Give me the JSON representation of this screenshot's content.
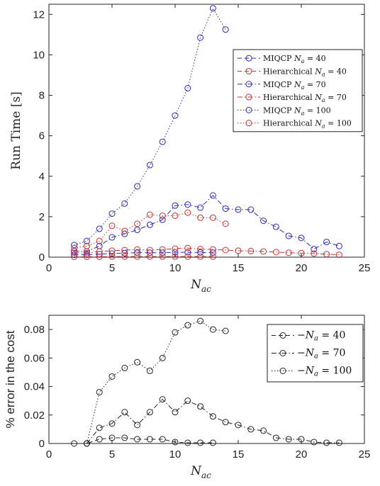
{
  "chart_data": [
    {
      "type": "line",
      "xlabel": "N_ac",
      "ylabel": "Run Time [s]",
      "xlim": [
        0,
        25
      ],
      "ylim": [
        0,
        12.5
      ],
      "xticks": [
        "0",
        "5",
        "10",
        "15",
        "20",
        "25"
      ],
      "yticks": [
        "0",
        "2",
        "4",
        "6",
        "8",
        "10",
        "12"
      ],
      "grid": false,
      "legend_position": "top-right",
      "series": [
        {
          "name": "MIQCP N_a = 40",
          "label_main": "MIQCP ",
          "label_var": "N",
          "label_sub": "a",
          "label_rest": " = 40",
          "color": "#2b2bb8",
          "dash": "dashed",
          "x": [
            2,
            3,
            4,
            5,
            6,
            7,
            8,
            9,
            10,
            11,
            12,
            13
          ],
          "y": [
            0.12,
            0.12,
            0.15,
            0.18,
            0.2,
            0.22,
            0.22,
            0.22,
            0.24,
            0.24,
            0.23,
            0.22
          ]
        },
        {
          "name": "Hierarchical N_a = 40",
          "label_main": "Hierarchical ",
          "label_var": "N",
          "label_sub": "a",
          "label_rest": " = 40",
          "color": "#c83232",
          "dash": "dashed",
          "x": [
            2,
            3,
            4,
            5,
            6,
            7,
            8,
            9,
            10,
            11,
            12,
            13
          ],
          "y": [
            0.02,
            0.02,
            0.02,
            0.03,
            0.03,
            0.03,
            0.03,
            0.03,
            0.03,
            0.03,
            0.03,
            0.03
          ]
        },
        {
          "name": "MIQCP N_a = 70",
          "label_main": "MIQCP ",
          "label_var": "N",
          "label_sub": "a",
          "label_rest": " = 70",
          "color": "#2b2bb8",
          "dash": "dashdot",
          "x": [
            2,
            3,
            4,
            5,
            6,
            7,
            8,
            9,
            10,
            11,
            12,
            13,
            14,
            15,
            16,
            17,
            18,
            19,
            20,
            21,
            22,
            23
          ],
          "y": [
            0.3,
            0.28,
            0.55,
            0.98,
            1.15,
            1.35,
            1.6,
            1.85,
            2.55,
            2.6,
            2.45,
            3.05,
            2.4,
            2.35,
            2.35,
            1.8,
            1.5,
            1.05,
            0.95,
            0.4,
            0.75,
            0.55
          ]
        },
        {
          "name": "Hierarchical N_a = 70",
          "label_main": "Hierarchical ",
          "label_var": "N",
          "label_sub": "a",
          "label_rest": " = 70",
          "color": "#c83232",
          "dash": "dashdot",
          "x": [
            2,
            3,
            4,
            5,
            6,
            7,
            8,
            9,
            10,
            11,
            12,
            13,
            14,
            15,
            16,
            17,
            18,
            19,
            20,
            21,
            22,
            23
          ],
          "y": [
            0.22,
            0.2,
            0.28,
            0.32,
            0.35,
            0.38,
            0.35,
            0.38,
            0.42,
            0.45,
            0.4,
            0.38,
            0.35,
            0.32,
            0.3,
            0.28,
            0.25,
            0.22,
            0.2,
            0.18,
            0.15,
            0.12
          ]
        },
        {
          "name": "MIQCP N_a = 100",
          "label_main": "MIQCP ",
          "label_var": "N",
          "label_sub": "a",
          "label_rest": " = 100",
          "color": "#2b2bb8",
          "dash": "dotted",
          "x": [
            2,
            3,
            4,
            5,
            6,
            7,
            8,
            9,
            10,
            11,
            12,
            13,
            14
          ],
          "y": [
            0.6,
            0.8,
            1.4,
            2.15,
            2.65,
            3.5,
            4.55,
            5.7,
            7.0,
            8.35,
            10.85,
            12.3,
            11.25
          ]
        },
        {
          "name": "Hierarchical N_a = 100",
          "label_main": "Hierarchical ",
          "label_var": "N",
          "label_sub": "a",
          "label_rest": " = 100",
          "color": "#c83232",
          "dash": "dotted",
          "x": [
            2,
            3,
            4,
            5,
            6,
            7,
            8,
            9,
            10,
            11,
            12,
            13,
            14
          ],
          "y": [
            0.45,
            0.55,
            0.8,
            1.55,
            1.3,
            1.65,
            2.1,
            2.05,
            2.05,
            2.2,
            1.95,
            1.95,
            1.65
          ]
        }
      ]
    },
    {
      "type": "line",
      "xlabel": "N_ac",
      "ylabel": "% error in the cost",
      "xlim": [
        0,
        25
      ],
      "ylim": [
        0,
        0.09
      ],
      "xticks": [
        "0",
        "5",
        "10",
        "15",
        "20",
        "25"
      ],
      "yticks": [
        "0",
        "0.02",
        "0.04",
        "0.06",
        "0.08"
      ],
      "grid": false,
      "legend_position": "top-right",
      "series": [
        {
          "name": "N_a = 40",
          "label_var": "N",
          "label_sub": "a",
          "label_rest": " = 40",
          "color": "#222222",
          "dash": "dashed",
          "x": [
            2,
            3,
            4,
            5,
            6,
            7,
            8,
            9,
            10,
            11,
            12,
            13
          ],
          "y": [
            0,
            0,
            0.003,
            0.004,
            0.004,
            0.003,
            0.003,
            0.003,
            0.001,
            0.0005,
            0.0005,
            0.0005
          ]
        },
        {
          "name": "N_a = 70",
          "label_var": "N",
          "label_sub": "a",
          "label_rest": " = 70",
          "color": "#222222",
          "dash": "dashdot",
          "x": [
            3,
            4,
            5,
            6,
            7,
            8,
            9,
            10,
            11,
            12,
            13,
            14,
            15,
            16,
            17,
            18,
            19,
            20,
            21,
            22,
            23
          ],
          "y": [
            0,
            0.011,
            0.014,
            0.022,
            0.013,
            0.022,
            0.031,
            0.022,
            0.03,
            0.026,
            0.019,
            0.015,
            0.013,
            0.01,
            0.009,
            0.004,
            0.003,
            0.003,
            0.001,
            0.0005,
            0.0005
          ]
        },
        {
          "name": "N_a = 100",
          "label_var": "N",
          "label_sub": "a",
          "label_rest": " = 100",
          "color": "#222222",
          "dash": "dotted",
          "x": [
            3,
            4,
            5,
            6,
            7,
            8,
            9,
            10,
            11,
            12,
            13,
            14
          ],
          "y": [
            0,
            0.036,
            0.047,
            0.053,
            0.057,
            0.051,
            0.06,
            0.078,
            0.083,
            0.086,
            0.08,
            0.079
          ]
        }
      ]
    }
  ]
}
